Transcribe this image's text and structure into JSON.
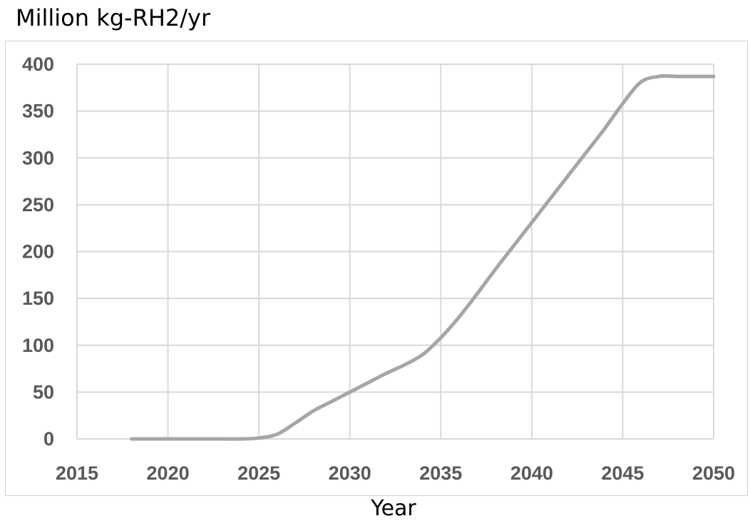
{
  "chart_data": {
    "type": "line",
    "title": "Million kg-RH2/yr",
    "xlabel": "Year",
    "ylabel": "",
    "xlim": [
      2015,
      2050
    ],
    "ylim": [
      0,
      400
    ],
    "xticks": [
      2015,
      2020,
      2025,
      2030,
      2035,
      2040,
      2045,
      2050
    ],
    "yticks": [
      0,
      50,
      100,
      150,
      200,
      250,
      300,
      350,
      400
    ],
    "grid": true,
    "legend": "none",
    "series": [
      {
        "color": "#a6a6a6",
        "x": [
          2018,
          2020,
          2022,
          2024,
          2025,
          2026,
          2027,
          2028,
          2029,
          2030,
          2031,
          2032,
          2033,
          2034,
          2035,
          2036,
          2037,
          2038,
          2039,
          2040,
          2041,
          2042,
          2043,
          2044,
          2045,
          2046,
          2047,
          2048,
          2049,
          2050
        ],
        "values": [
          0,
          0,
          0,
          0,
          1,
          5,
          17,
          30,
          40,
          50,
          60,
          70,
          79,
          90,
          108,
          130,
          155,
          181,
          206,
          231,
          256,
          281,
          306,
          331,
          358,
          381,
          387,
          387,
          387,
          387
        ]
      }
    ]
  }
}
